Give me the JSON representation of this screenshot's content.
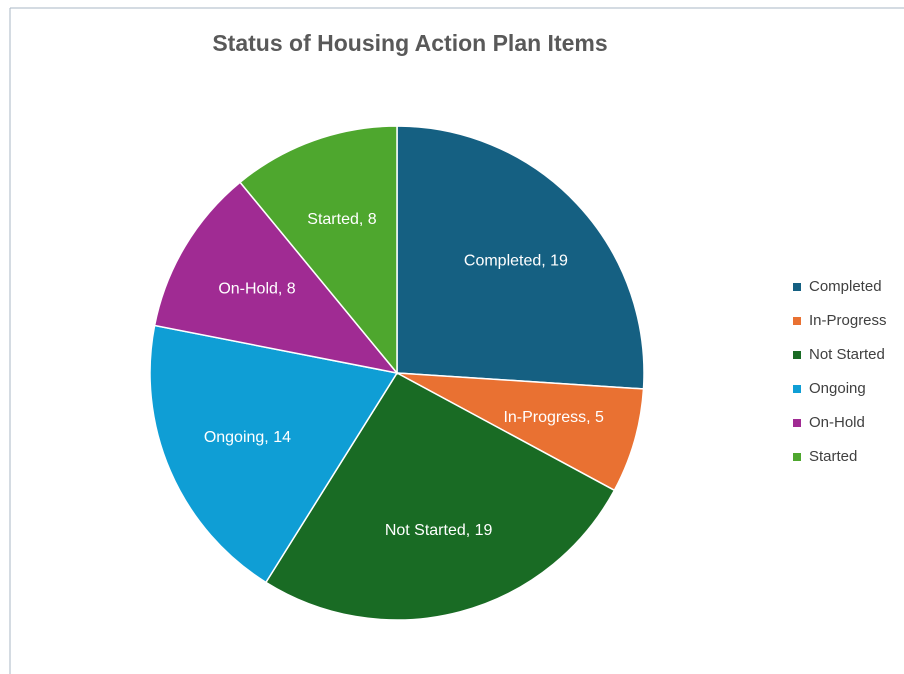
{
  "chart_data": {
    "type": "pie",
    "title": "Status of Housing Action Plan Items",
    "categories": [
      "Completed",
      "In-Progress",
      "Not Started",
      "Ongoing",
      "On-Hold",
      "Started"
    ],
    "values": [
      19,
      5,
      19,
      14,
      8,
      8
    ],
    "value_labels": [
      "Completed, 19",
      "In-Progress, 5",
      "Not Started, 19",
      "Ongoing, 14",
      "On-Hold, 8",
      "Started, 8"
    ],
    "colors": [
      "#156082",
      "#e97132",
      "#196b24",
      "#0f9ed5",
      "#a02b93",
      "#4ea72e"
    ],
    "legend": "right"
  }
}
